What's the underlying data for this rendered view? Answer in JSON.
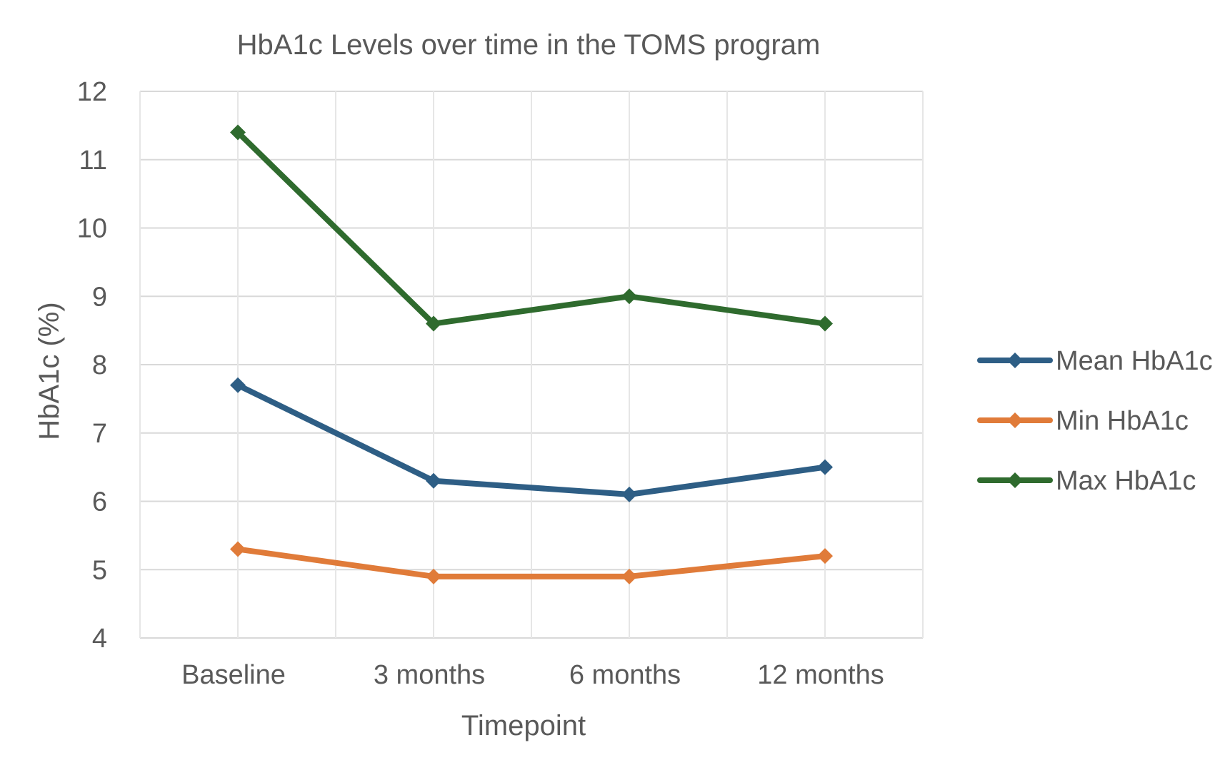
{
  "chart_data": {
    "type": "line",
    "title": "HbA1c Levels over time in the TOMS program",
    "xlabel": "Timepoint",
    "ylabel": "HbA1c (%)",
    "categories": [
      "Baseline",
      "3 months",
      "6 months",
      "12 months"
    ],
    "ylim": [
      4,
      12
    ],
    "yticks": [
      4,
      5,
      6,
      7,
      8,
      9,
      10,
      11,
      12
    ],
    "grid": true,
    "legend_position": "right",
    "series": [
      {
        "name": "Mean HbA1c",
        "color": "#2E5E85",
        "marker": "diamond",
        "values": [
          7.7,
          6.3,
          6.1,
          6.5
        ]
      },
      {
        "name": "Min HbA1c",
        "color": "#E07B39",
        "marker": "diamond",
        "values": [
          5.3,
          4.9,
          4.9,
          5.2
        ]
      },
      {
        "name": "Max HbA1c",
        "color": "#2F6B2E",
        "marker": "diamond",
        "values": [
          11.4,
          8.6,
          9.0,
          8.6
        ]
      }
    ]
  }
}
